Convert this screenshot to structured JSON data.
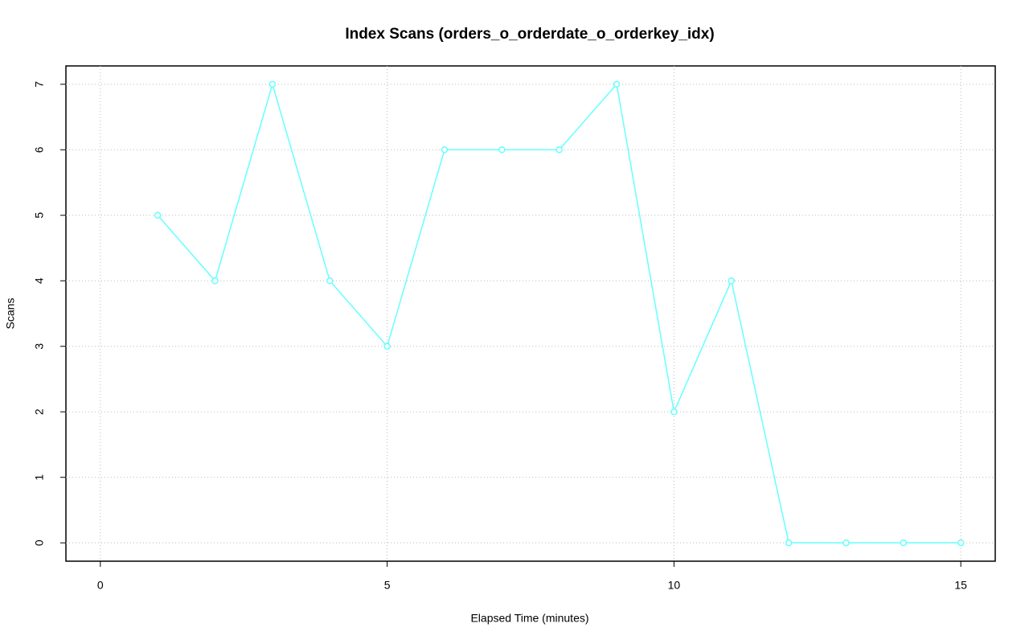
{
  "chart_data": {
    "type": "line",
    "title": "Index Scans (orders_o_orderdate_o_orderkey_idx)",
    "x_label": "Elapsed Time (minutes)",
    "y_label": "Scans",
    "x": [
      1,
      2,
      3,
      4,
      5,
      6,
      7,
      8,
      9,
      10,
      11,
      12,
      13,
      14,
      15
    ],
    "series": [
      {
        "name": "orders_o_orderdate_o_orderkey_idx",
        "color": "#66ffff",
        "values": [
          5,
          4,
          7,
          4,
          3,
          6,
          6,
          6,
          7,
          2,
          4,
          0,
          0,
          0,
          0
        ]
      }
    ],
    "xlim": [
      -0.6,
      15.6
    ],
    "xticks": [
      0,
      5,
      10,
      15
    ],
    "ylim": [
      -0.28,
      7.28
    ],
    "yticks": [
      0,
      1,
      2,
      3,
      4,
      5,
      6,
      7
    ],
    "grid": true
  }
}
